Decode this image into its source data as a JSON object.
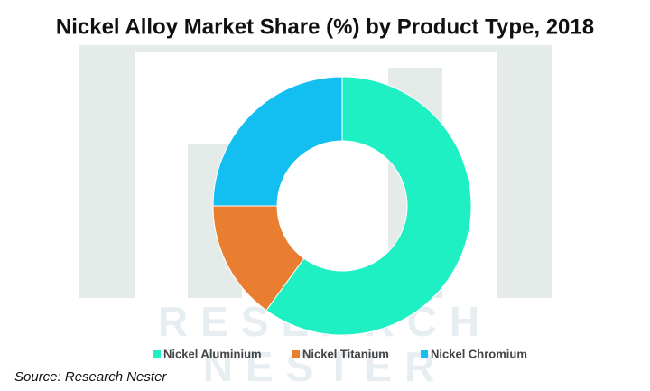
{
  "chart_data": {
    "type": "donut",
    "title": "Nickel Alloy Market Share (%) by Product Type, 2018",
    "categories": [
      "Nickel Aluminium",
      "Nickel Titanium",
      "Nickel Chromium"
    ],
    "values": [
      60,
      15,
      25
    ],
    "colors": [
      "#1ef0c4",
      "#e97d30",
      "#12bff0"
    ],
    "legend": "bottom",
    "source": "Source: Research Nester",
    "watermark": [
      "RESEARCH",
      "NESTER"
    ]
  }
}
